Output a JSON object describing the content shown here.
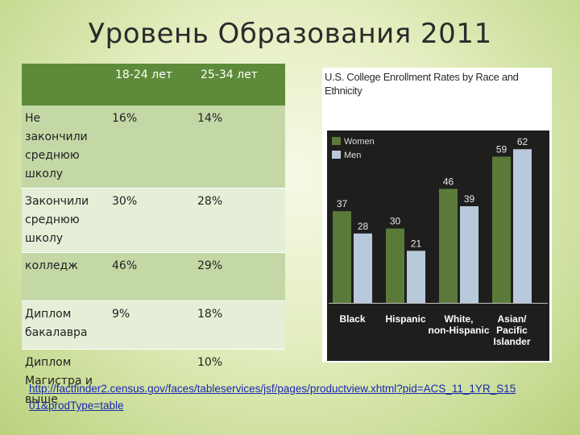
{
  "slide": {
    "title": "Уровень Образования 2011",
    "source_link": "http://factfinder2.census.gov/faces/tableservices/jsf/pages/productview.xhtml?pid=ACS_11_1YR_S1501&prodType=table"
  },
  "table": {
    "headers": [
      "",
      "18-24 лет",
      "25-34 лет"
    ],
    "rows": [
      {
        "label": "Не закончили среднюю школу",
        "a": "16%",
        "b": "14%"
      },
      {
        "label": "Закончили среднюю школу",
        "a": "30%",
        "b": "28%"
      },
      {
        "label": "колледж",
        "a": "46%",
        "b": "29%"
      },
      {
        "label": "Диплом бакалавра",
        "a": "9%",
        "b": "18%"
      },
      {
        "label": "Диплом Магистра и выше",
        "a": "",
        "b": "10%"
      }
    ],
    "colors": {
      "header": "#5e8b3a",
      "band_dark": "#c4d8a6",
      "band_light": "#e5eed7"
    }
  },
  "chart_data": {
    "type": "bar",
    "title": "U.S. College Enrollment Rates by Race and Ethnicity",
    "categories": [
      "Black",
      "Hispanic",
      "White, non-Hispanic",
      "Asian/ Pacific Islander"
    ],
    "series": [
      {
        "name": "Women",
        "values": [
          37,
          30,
          46,
          59
        ],
        "color": "#5b7a3a"
      },
      {
        "name": "Men",
        "values": [
          28,
          21,
          39,
          62
        ],
        "color": "#b9c9dc"
      }
    ],
    "ylim": [
      0,
      65
    ],
    "legend": "top-left",
    "grid": false
  }
}
